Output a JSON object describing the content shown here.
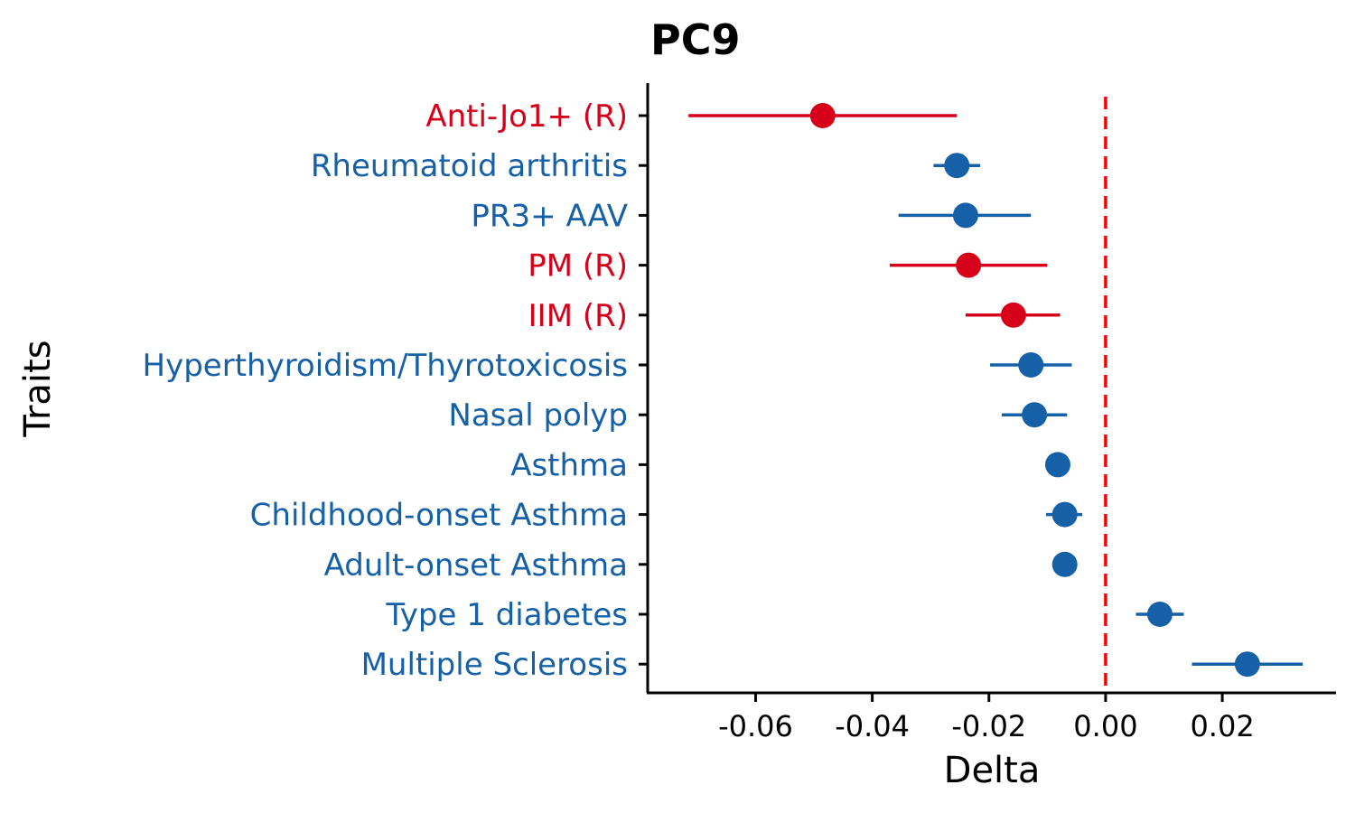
{
  "chart_data": {
    "type": "scatter",
    "title": "PC9",
    "xlabel": "Delta",
    "ylabel": "Traits",
    "xlim": [
      -0.0785,
      0.0395
    ],
    "x_ticks": [
      -0.06,
      -0.04,
      -0.02,
      0.0,
      0.02
    ],
    "x_tick_labels": [
      "-0.06",
      "-0.04",
      "-0.02",
      "0.00",
      "0.02"
    ],
    "reference_line": {
      "x": 0.0,
      "style": "dashed",
      "color": "#ff0000"
    },
    "colors": {
      "highlight": "#d7001b",
      "default": "#1660a8"
    },
    "grid": false,
    "legend": "none",
    "traits": [
      {
        "label": "Anti-Jo1+ (R)",
        "delta": -0.0485,
        "lower": -0.0715,
        "upper": -0.0255,
        "group": "highlight"
      },
      {
        "label": "Rheumatoid arthritis",
        "delta": -0.0255,
        "lower": -0.0295,
        "upper": -0.0215,
        "group": "default"
      },
      {
        "label": "PR3+ AAV",
        "delta": -0.024,
        "lower": -0.0355,
        "upper": -0.0128,
        "group": "default"
      },
      {
        "label": "PM (R)",
        "delta": -0.0235,
        "lower": -0.037,
        "upper": -0.01,
        "group": "highlight"
      },
      {
        "label": "IIM (R)",
        "delta": -0.0158,
        "lower": -0.024,
        "upper": -0.0078,
        "group": "highlight"
      },
      {
        "label": "Hyperthyroidism/Thyrotoxicosis",
        "delta": -0.0128,
        "lower": -0.0198,
        "upper": -0.0058,
        "group": "default"
      },
      {
        "label": "Nasal polyp",
        "delta": -0.0122,
        "lower": -0.0178,
        "upper": -0.0066,
        "group": "default"
      },
      {
        "label": "Asthma",
        "delta": -0.0082,
        "lower": -0.01,
        "upper": -0.0064,
        "group": "default"
      },
      {
        "label": "Childhood-onset Asthma",
        "delta": -0.007,
        "lower": -0.0102,
        "upper": -0.004,
        "group": "default"
      },
      {
        "label": "Adult-onset Asthma",
        "delta": -0.007,
        "lower": -0.0082,
        "upper": -0.0058,
        "group": "default"
      },
      {
        "label": "Type 1 diabetes",
        "delta": 0.0093,
        "lower": 0.0052,
        "upper": 0.0134,
        "group": "default"
      },
      {
        "label": "Multiple Sclerosis",
        "delta": 0.0243,
        "lower": 0.0148,
        "upper": 0.0338,
        "group": "default"
      }
    ]
  }
}
